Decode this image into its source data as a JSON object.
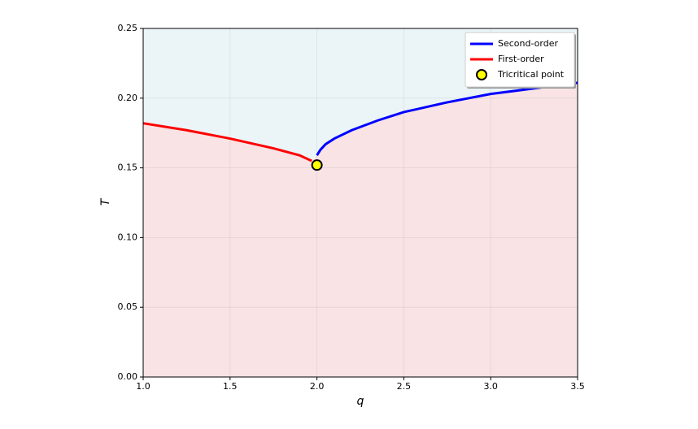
{
  "chart_data": {
    "type": "line",
    "xlabel": "q",
    "ylabel": "T",
    "xlim": [
      1.0,
      3.5
    ],
    "ylim": [
      0,
      0.25
    ],
    "xticks": [
      {
        "value": 1.0,
        "label": "1.0"
      },
      {
        "value": 1.5,
        "label": "1.5"
      },
      {
        "value": 2.0,
        "label": "2.0"
      },
      {
        "value": 2.5,
        "label": "2.5"
      },
      {
        "value": 3.0,
        "label": "3.0"
      },
      {
        "value": 3.5,
        "label": "3.5"
      }
    ],
    "yticks": [
      {
        "value": 0,
        "label": "0.00"
      },
      {
        "value": 0.05,
        "label": "0.05"
      },
      {
        "value": 0.1,
        "label": "0.10"
      },
      {
        "value": 0.15,
        "label": "0.15"
      },
      {
        "value": 0.2,
        "label": "0.20"
      },
      {
        "value": 0.25,
        "label": "0.25"
      }
    ],
    "grid": true,
    "legend": "upper right",
    "fill_above": "#ebf5f8",
    "fill_below": "#f9e3e4",
    "series": [
      {
        "name": "Second-order",
        "color": "#0000ff",
        "style": "line",
        "x": [
          2.0,
          2.02,
          2.05,
          2.1,
          2.2,
          2.35,
          2.5,
          2.75,
          3.0,
          3.25,
          3.5
        ],
        "values": [
          0.159,
          0.163,
          0.167,
          0.171,
          0.177,
          0.184,
          0.19,
          0.197,
          0.203,
          0.207,
          0.211
        ]
      },
      {
        "name": "First-order",
        "color": "#ff0000",
        "style": "line",
        "x": [
          1.0,
          1.25,
          1.5,
          1.75,
          1.9,
          1.97
        ],
        "values": [
          0.182,
          0.177,
          0.171,
          0.164,
          0.159,
          0.155
        ]
      },
      {
        "name": "Tricritical point",
        "color": "#ffff00",
        "style": "marker",
        "x": [
          2.0
        ],
        "values": [
          0.152
        ]
      }
    ]
  }
}
